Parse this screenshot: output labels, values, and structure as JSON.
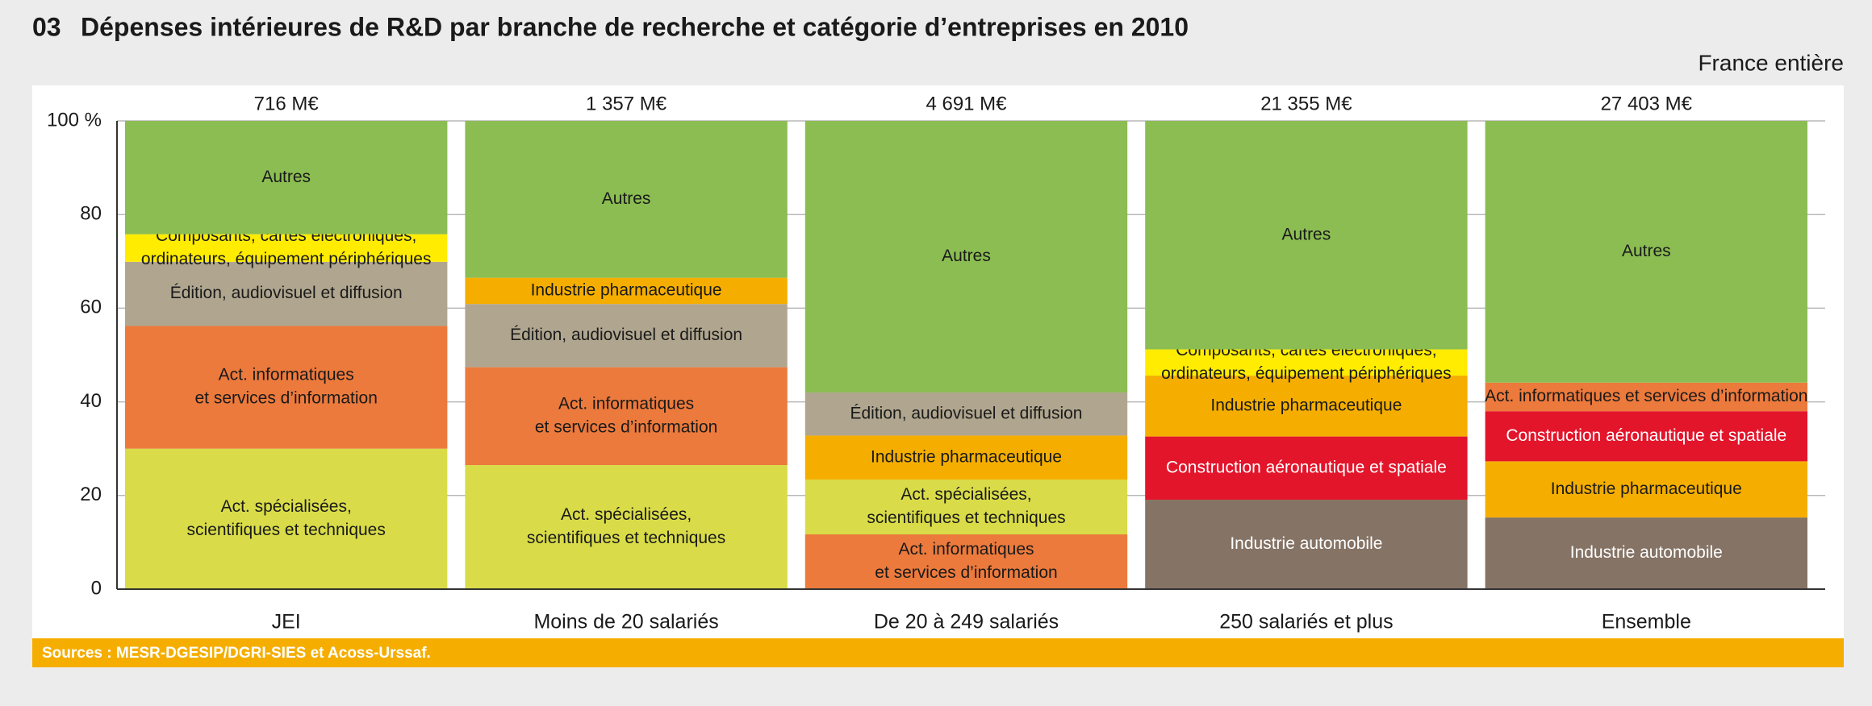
{
  "chart_data": {
    "type": "stacked_percent_bar",
    "number": "03",
    "title": "Dépenses intérieures de R&D par branche de recherche et catégorie d’entreprises en 2010",
    "subtitle": "France entière",
    "source": "Sources : MESR-DGESIP/DGRI-SIES et Acoss-Urssaf.",
    "categories": [
      "JEI",
      "Moins de 20 salariés",
      "De 20 à 249 salariés",
      "250 salariés et plus",
      "Ensemble"
    ],
    "totals": {
      "values": [
        716,
        1357,
        4691,
        21355,
        27403
      ],
      "value_labels": [
        "716 M€",
        "1 357 M€",
        "4 691 M€",
        "21 355 M€",
        "27 403 M€"
      ]
    },
    "ylim": [
      0,
      100
    ],
    "yticks": [
      0,
      20,
      40,
      60,
      80,
      {
        "value": 100,
        "label": "100 %"
      }
    ],
    "grid": true,
    "stacks": [
      {
        "segments": [
          {
            "label": [
              "Act. spécialisées,",
              "scientifiques et techniques"
            ],
            "color": "#d9dc48",
            "value": 30.0
          },
          {
            "label": [
              "Act. informatiques",
              "et services d’information"
            ],
            "color": "#ec7a3c",
            "value": 26.2
          },
          {
            "label": [
              "Édition, audiovisuel et diffusion"
            ],
            "color": "#b0a68f",
            "value": 13.7
          },
          {
            "label": [
              "Composants, cartes électroniques,",
              "ordinateurs, équipement périphériques"
            ],
            "color": "#ffec00",
            "value": 5.9
          },
          {
            "label": [
              "Autres"
            ],
            "color": "#8bbd52",
            "value": 24.2
          }
        ]
      },
      {
        "segments": [
          {
            "label": [
              "Act. spécialisées,",
              "scientifiques et techniques"
            ],
            "color": "#d9dc48",
            "value": 26.5
          },
          {
            "label": [
              "Act. informatiques",
              "et services d’information"
            ],
            "color": "#ec7a3c",
            "value": 20.9
          },
          {
            "label": [
              "Édition, audiovisuel et diffusion"
            ],
            "color": "#b0a68f",
            "value": 13.5
          },
          {
            "label": [
              "Industrie pharmaceutique"
            ],
            "color": "#f5ae00",
            "value": 5.6
          },
          {
            "label": [
              "Autres"
            ],
            "color": "#8bbd52",
            "value": 33.5
          }
        ]
      },
      {
        "segments": [
          {
            "label": [
              "Act. informatiques",
              "et services d’information"
            ],
            "color": "#ec7a3c",
            "value": 11.7
          },
          {
            "label": [
              "Act. spécialisées,",
              "scientifiques et techniques"
            ],
            "color": "#d9dc48",
            "value": 11.7
          },
          {
            "label": [
              "Industrie pharmaceutique"
            ],
            "color": "#f5ae00",
            "value": 9.4
          },
          {
            "label": [
              "Édition, audiovisuel et diffusion"
            ],
            "color": "#b0a68f",
            "value": 9.2
          },
          {
            "label": [
              "Autres"
            ],
            "color": "#8bbd52",
            "value": 58.0
          }
        ]
      },
      {
        "segments": [
          {
            "label": [
              "Industrie automobile"
            ],
            "color": "#857365",
            "value": 19.1
          },
          {
            "label": [
              "Construction aéronautique et spatiale"
            ],
            "color": "#e3152b",
            "value": 13.5
          },
          {
            "label": [
              "Industrie pharmaceutique"
            ],
            "color": "#f5ae00",
            "value": 13.0
          },
          {
            "label": [
              "Composants, cartes électroniques,",
              "ordinateurs, équipement périphériques"
            ],
            "color": "#ffec00",
            "value": 5.6
          },
          {
            "label": [
              "Autres"
            ],
            "color": "#8bbd52",
            "value": 48.8
          }
        ]
      },
      {
        "segments": [
          {
            "label": [
              "Industrie automobile"
            ],
            "color": "#857365",
            "value": 15.3
          },
          {
            "label": [
              "Industrie pharmaceutique"
            ],
            "color": "#f5ae00",
            "value": 12.0
          },
          {
            "label": [
              "Construction aéronautique et spatiale"
            ],
            "color": "#e3152b",
            "value": 10.7
          },
          {
            "label": [
              "Act. informatiques et services d’information"
            ],
            "color": "#ec7a3c",
            "value": 6.1
          },
          {
            "label": [
              "Autres"
            ],
            "color": "#8bbd52",
            "value": 55.9
          }
        ]
      }
    ]
  }
}
